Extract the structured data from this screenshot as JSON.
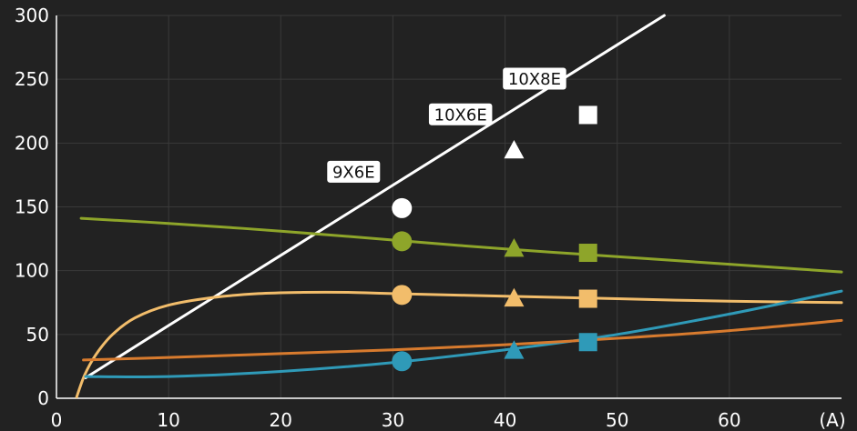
{
  "chart_data": {
    "type": "line",
    "xlabel": "",
    "ylabel": "",
    "x_unit_label": "(A)",
    "xlim": [
      0,
      70
    ],
    "ylim": [
      0,
      300
    ],
    "x_ticks": [
      0,
      10,
      20,
      30,
      40,
      50,
      60
    ],
    "y_ticks": [
      0,
      50,
      100,
      150,
      200,
      250,
      300
    ],
    "grid": true,
    "background": "#222222",
    "series": [
      {
        "color": "#ffffff",
        "points": [
          [
            2.6,
            16
          ],
          [
            10,
            57
          ],
          [
            20,
            112
          ],
          [
            30,
            167
          ],
          [
            40,
            222
          ],
          [
            50,
            277
          ],
          [
            54.2,
            300
          ]
        ],
        "markers": [
          {
            "x": 30.8,
            "y": 149,
            "shape": "circle",
            "label": "9X6E"
          },
          {
            "x": 40.8,
            "y": 194,
            "shape": "triangle",
            "label": "10X6E"
          },
          {
            "x": 47.4,
            "y": 222,
            "shape": "square",
            "label": "10X8E"
          }
        ]
      },
      {
        "color": "#8ea52a",
        "points": [
          [
            2.2,
            141
          ],
          [
            10,
            137
          ],
          [
            20,
            131
          ],
          [
            30,
            124
          ],
          [
            40,
            117
          ],
          [
            50,
            111
          ],
          [
            60,
            105
          ],
          [
            70,
            99
          ]
        ],
        "markers": [
          {
            "x": 30.8,
            "y": 123,
            "shape": "circle"
          },
          {
            "x": 40.8,
            "y": 117,
            "shape": "triangle"
          },
          {
            "x": 47.4,
            "y": 114,
            "shape": "square"
          }
        ]
      },
      {
        "color": "#f2bd6b",
        "points": [
          [
            1.8,
            1
          ],
          [
            2.5,
            18
          ],
          [
            3.5,
            34
          ],
          [
            5,
            50
          ],
          [
            7,
            63
          ],
          [
            10,
            73
          ],
          [
            14,
            79
          ],
          [
            18,
            82
          ],
          [
            22,
            83
          ],
          [
            26,
            83
          ],
          [
            30,
            82
          ],
          [
            40,
            80
          ],
          [
            50,
            78
          ],
          [
            60,
            76
          ],
          [
            70,
            75
          ]
        ],
        "markers": [
          {
            "x": 30.8,
            "y": 81,
            "shape": "circle"
          },
          {
            "x": 40.8,
            "y": 78,
            "shape": "triangle"
          },
          {
            "x": 47.4,
            "y": 78,
            "shape": "square"
          }
        ]
      },
      {
        "color": "#2f9ab8",
        "points": [
          [
            2.6,
            17
          ],
          [
            10,
            17
          ],
          [
            20,
            21
          ],
          [
            30,
            28
          ],
          [
            40,
            38
          ],
          [
            50,
            50
          ],
          [
            60,
            66
          ],
          [
            70,
            84
          ]
        ],
        "markers": [
          {
            "x": 30.8,
            "y": 29,
            "shape": "circle"
          },
          {
            "x": 40.8,
            "y": 37,
            "shape": "triangle"
          },
          {
            "x": 47.4,
            "y": 44,
            "shape": "square"
          }
        ]
      },
      {
        "color": "#d87b2e",
        "points": [
          [
            2.4,
            30
          ],
          [
            10,
            32
          ],
          [
            20,
            35
          ],
          [
            30,
            38
          ],
          [
            40,
            42
          ],
          [
            50,
            47
          ],
          [
            60,
            53
          ],
          [
            70,
            61
          ]
        ],
        "markers": []
      }
    ]
  }
}
